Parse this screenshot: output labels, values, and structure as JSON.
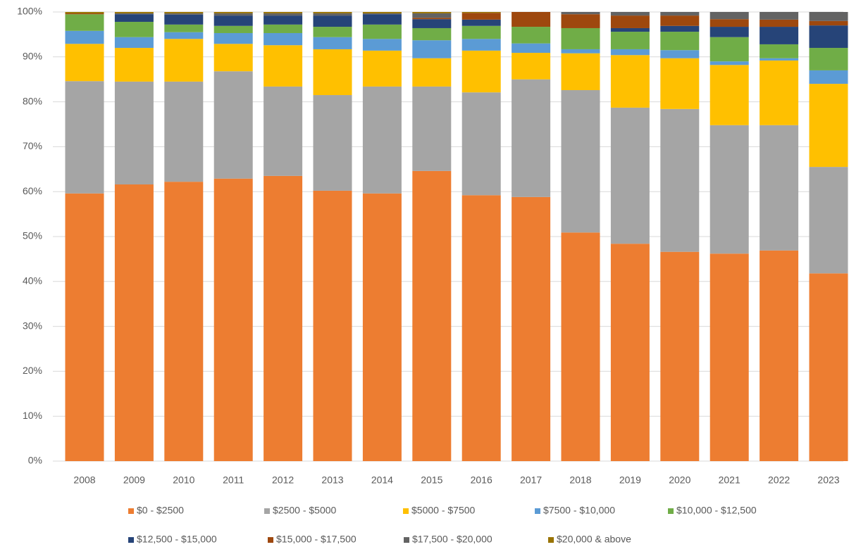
{
  "chart_data": {
    "type": "stacked_bar",
    "categories": [
      "2008",
      "2009",
      "2010",
      "2011",
      "2012",
      "2013",
      "2014",
      "2015",
      "2016",
      "2017",
      "2018",
      "2019",
      "2020",
      "2021",
      "2022",
      "2023"
    ],
    "series": [
      {
        "name": "$0 - $2500",
        "color": "#ed7d31",
        "values": [
          59.6,
          61.6,
          62.2,
          62.9,
          63.5,
          60.2,
          59.6,
          64.6,
          59.2,
          58.8,
          50.9,
          48.4,
          46.6,
          46.2,
          46.9,
          41.8
        ]
      },
      {
        "name": "$2500 - $5000",
        "color": "#a5a5a5",
        "values": [
          25.0,
          22.9,
          22.3,
          23.9,
          19.9,
          21.3,
          23.8,
          18.8,
          22.9,
          26.2,
          31.7,
          30.3,
          31.8,
          28.6,
          27.9,
          23.7
        ]
      },
      {
        "name": "$5000 - $7500",
        "color": "#ffc000",
        "values": [
          8.3,
          7.5,
          9.5,
          6.1,
          9.2,
          10.2,
          8.0,
          6.3,
          9.3,
          5.9,
          8.2,
          11.7,
          11.3,
          13.4,
          14.4,
          18.5
        ]
      },
      {
        "name": "$7500 - $10,000",
        "color": "#5b9bd5",
        "values": [
          2.9,
          2.4,
          1.5,
          2.4,
          2.7,
          2.7,
          2.6,
          4.0,
          2.6,
          2.1,
          0.9,
          1.3,
          1.8,
          0.8,
          0.5,
          3.0
        ]
      },
      {
        "name": "$10,000 - $12,500",
        "color": "#70ad47",
        "values": [
          3.7,
          3.4,
          1.7,
          1.6,
          1.9,
          2.3,
          3.2,
          2.7,
          2.9,
          3.7,
          4.7,
          3.9,
          4.1,
          5.4,
          3.1,
          5.0
        ]
      },
      {
        "name": "$12,500 - $15,000",
        "color": "#264478",
        "values": [
          0,
          1.7,
          2.2,
          2.3,
          2.0,
          2.5,
          2.3,
          2.0,
          1.4,
          0,
          0,
          0.8,
          1.3,
          2.3,
          3.9,
          5.0
        ]
      },
      {
        "name": "$15,000 - $17,500",
        "color": "#9e480e",
        "values": [
          0.2,
          0,
          0,
          0,
          0,
          0,
          0,
          0.3,
          1.5,
          3.3,
          3.1,
          2.8,
          2.3,
          1.7,
          1.6,
          1.0
        ]
      },
      {
        "name": "$17,500 - $20,000",
        "color": "#636363",
        "values": [
          0,
          0.2,
          0.3,
          0.5,
          0.5,
          0.5,
          0.2,
          1.0,
          0,
          0,
          0.5,
          0.8,
          0.8,
          1.6,
          1.7,
          2.0
        ]
      },
      {
        "name": "$20,000 & above",
        "color": "#997300",
        "values": [
          0.3,
          0.3,
          0.3,
          0.3,
          0.3,
          0.3,
          0.3,
          0.3,
          0.2,
          0,
          0,
          0,
          0,
          0,
          0,
          0
        ]
      }
    ],
    "ylim": [
      0,
      100
    ],
    "yticks": [
      {
        "value": 0,
        "label": "0%"
      },
      {
        "value": 10,
        "label": "10%"
      },
      {
        "value": 20,
        "label": "20%"
      },
      {
        "value": 30,
        "label": "30%"
      },
      {
        "value": 40,
        "label": "40%"
      },
      {
        "value": 50,
        "label": "50%"
      },
      {
        "value": 60,
        "label": "60%"
      },
      {
        "value": 70,
        "label": "70%"
      },
      {
        "value": 80,
        "label": "80%"
      },
      {
        "value": 90,
        "label": "90%"
      },
      {
        "value": 100,
        "label": "100%"
      }
    ],
    "grid": true,
    "legend": "bottom"
  }
}
